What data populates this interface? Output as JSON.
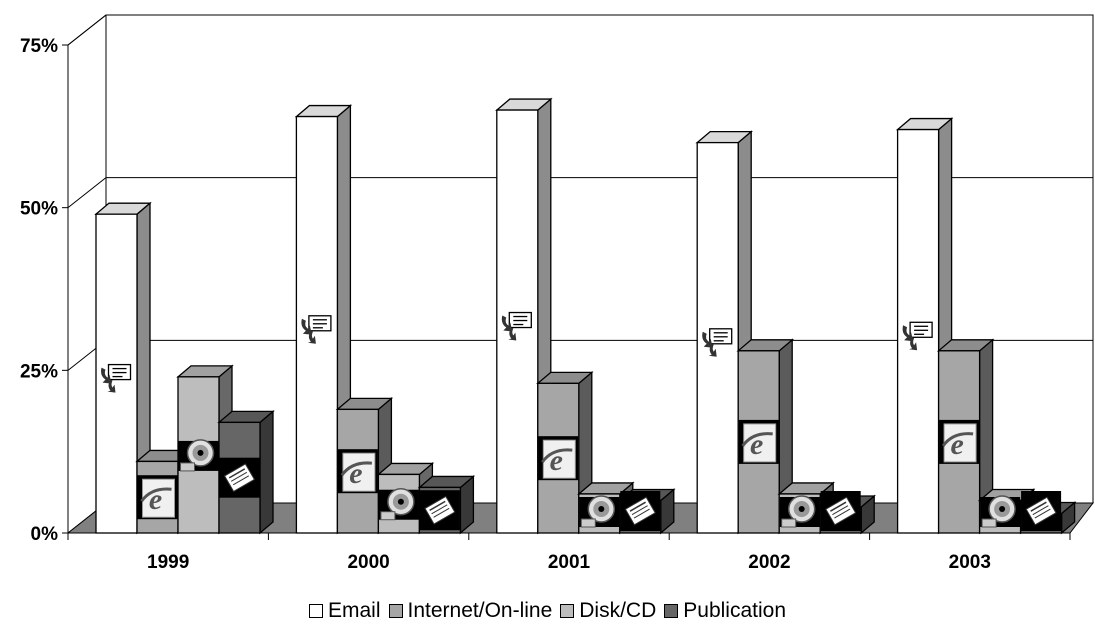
{
  "chart_data": {
    "type": "bar",
    "categories": [
      "1999",
      "2000",
      "2001",
      "2002",
      "2003"
    ],
    "series": [
      {
        "name": "Email",
        "values": [
          49,
          64,
          65,
          60,
          62
        ],
        "color": "#ffffff",
        "icon": "envelope-icon"
      },
      {
        "name": "Internet/On-line",
        "values": [
          11,
          19,
          23,
          28,
          28
        ],
        "color": "#a6a6a6",
        "icon": "ie-browser-icon"
      },
      {
        "name": "Disk/CD",
        "values": [
          24,
          9,
          6,
          6,
          5
        ],
        "color": "#bdbdbd",
        "icon": "cd-disk-icon"
      },
      {
        "name": "Publication",
        "values": [
          17,
          7,
          5,
          4,
          3
        ],
        "color": "#666666",
        "icon": "newspaper-icon"
      }
    ],
    "y_ticks": [
      "0%",
      "25%",
      "50%",
      "75%"
    ],
    "ylim": [
      0,
      75
    ],
    "y_unit": "%",
    "grid": true,
    "legend_position": "bottom",
    "three_d": true,
    "floor_color": "#808080"
  }
}
